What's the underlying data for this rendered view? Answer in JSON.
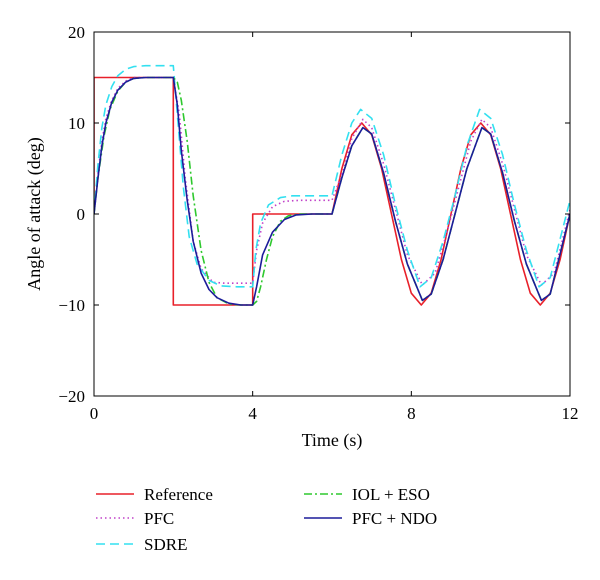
{
  "chart_data": {
    "type": "line",
    "title": "",
    "xlabel": "Time (s)",
    "ylabel": "Angle of attack (deg)",
    "xlim": [
      0,
      12
    ],
    "ylim": [
      -20,
      20
    ],
    "xticks": [
      0,
      4,
      8,
      12
    ],
    "yticks": [
      -20,
      -10,
      0,
      10,
      20
    ],
    "grid": false,
    "legend_position": "bottom",
    "series": [
      {
        "name": "Reference",
        "color": "#e8202a",
        "dash": "solid",
        "x": [
          0,
          0,
          2,
          2,
          4,
          4,
          6,
          6.25,
          6.5,
          6.75,
          7,
          7.25,
          7.5,
          7.75,
          8,
          8.25,
          8.5,
          8.75,
          9,
          9.25,
          9.5,
          9.75,
          10,
          10.25,
          10.5,
          10.75,
          11,
          11.25,
          11.5,
          11.75,
          12
        ],
        "y": [
          0,
          15,
          15,
          -10,
          -10,
          0,
          0,
          5,
          8.7,
          10,
          8.7,
          5,
          0,
          -5,
          -8.7,
          -10,
          -8.7,
          -5,
          0,
          5,
          8.7,
          10,
          8.7,
          5,
          0,
          -5,
          -8.7,
          -10,
          -8.7,
          -5,
          0
        ]
      },
      {
        "name": "PFC",
        "color": "#c040c8",
        "dash": "dotted",
        "x": [
          0,
          0.1,
          0.2,
          0.3,
          0.45,
          0.6,
          0.8,
          1.0,
          1.3,
          1.6,
          2.0,
          2.15,
          2.3,
          2.5,
          2.7,
          3.0,
          3.3,
          3.6,
          4.0,
          4.1,
          4.25,
          4.5,
          4.8,
          5.2,
          6.0,
          6.3,
          6.5,
          6.78,
          7.0,
          7.3,
          7.6,
          7.9,
          8.28,
          8.6,
          8.9,
          9.2,
          9.5,
          9.78,
          10.0,
          10.3,
          10.6,
          10.9,
          11.28,
          11.6,
          12
        ],
        "y": [
          0,
          4.5,
          8,
          10.5,
          12.5,
          13.8,
          14.6,
          15,
          15,
          15,
          15,
          11,
          4,
          -3,
          -6,
          -7.5,
          -7.6,
          -7.6,
          -7.6,
          -4,
          -1,
          0.8,
          1.4,
          1.5,
          1.5,
          5,
          8.3,
          10.4,
          9.5,
          5.5,
          0.5,
          -4.5,
          -7.8,
          -6.5,
          -2,
          3,
          8,
          10.4,
          9.5,
          5.5,
          0.5,
          -4.5,
          -7.8,
          -6.5,
          0.5
        ]
      },
      {
        "name": "SDRE",
        "color": "#33e0f0",
        "dash": "dashed",
        "x": [
          0,
          0.1,
          0.2,
          0.3,
          0.45,
          0.6,
          0.8,
          1.0,
          1.3,
          1.6,
          2.0,
          2.1,
          2.25,
          2.4,
          2.6,
          2.9,
          3.2,
          3.6,
          4.0,
          4.08,
          4.2,
          4.4,
          4.7,
          5.0,
          6.0,
          6.25,
          6.5,
          6.72,
          7.0,
          7.3,
          7.6,
          7.9,
          8.22,
          8.5,
          8.8,
          9.1,
          9.4,
          9.72,
          10.0,
          10.3,
          10.6,
          10.9,
          11.22,
          11.5,
          12
        ],
        "y": [
          0,
          5.5,
          9.5,
          12,
          14,
          15.2,
          15.9,
          16.2,
          16.3,
          16.3,
          16.3,
          11,
          3,
          -2.5,
          -5.5,
          -7.3,
          -7.9,
          -8,
          -8,
          -4,
          -1,
          1,
          1.8,
          2,
          2,
          6.5,
          10,
          11.5,
          10.5,
          6.5,
          1,
          -4,
          -8,
          -7,
          -3,
          2,
          7.5,
          11.5,
          10.5,
          6.5,
          1,
          -4,
          -8,
          -7,
          1.5
        ]
      },
      {
        "name": "IOL + ESO",
        "color": "#2ec82e",
        "dash": "dashdot",
        "x": [
          0,
          0.1,
          0.25,
          0.4,
          0.6,
          0.8,
          1.0,
          1.3,
          1.6,
          2.0,
          2.1,
          2.2,
          2.35,
          2.5,
          2.7,
          2.9,
          3.1,
          3.4,
          3.7,
          4.0,
          4.1,
          4.2,
          4.35,
          4.5,
          4.7,
          4.9,
          5.2,
          6.0,
          6.25,
          6.5,
          6.78,
          7.0,
          7.3,
          7.6,
          7.9,
          8.28,
          8.5,
          8.8,
          9.1,
          9.4,
          9.78,
          10.0,
          10.3,
          10.6,
          10.9,
          11.28,
          11.5,
          12
        ],
        "y": [
          0,
          4,
          8.5,
          11.5,
          13.5,
          14.5,
          14.9,
          15,
          15,
          15,
          14.5,
          12.5,
          8,
          2,
          -4,
          -7.5,
          -9.2,
          -9.9,
          -10,
          -10,
          -9.6,
          -8,
          -5,
          -2.5,
          -0.8,
          -0.2,
          0,
          0,
          4,
          7.5,
          9.5,
          8.8,
          4.5,
          -0.8,
          -5.5,
          -9.5,
          -8.8,
          -5,
          0,
          5,
          9.5,
          8.8,
          4.5,
          -0.8,
          -5.5,
          -9.5,
          -8.8,
          0
        ]
      },
      {
        "name": "PFC + NDO",
        "color": "#1c1c9a",
        "dash": "solid",
        "x": [
          0,
          0.1,
          0.2,
          0.3,
          0.45,
          0.6,
          0.8,
          1.0,
          1.3,
          1.6,
          2.0,
          2.1,
          2.2,
          2.35,
          2.5,
          2.7,
          2.9,
          3.1,
          3.4,
          3.7,
          4.0,
          4.1,
          4.25,
          4.5,
          4.8,
          5.1,
          5.5,
          6.0,
          6.25,
          6.5,
          6.78,
          7.0,
          7.3,
          7.6,
          7.9,
          8.28,
          8.5,
          8.8,
          9.1,
          9.4,
          9.78,
          10.0,
          10.3,
          10.6,
          10.9,
          11.28,
          11.5,
          12
        ],
        "y": [
          0,
          4,
          7.5,
          10,
          12.3,
          13.6,
          14.5,
          14.9,
          15,
          15,
          15,
          12,
          7,
          1.5,
          -3,
          -6.5,
          -8.3,
          -9.2,
          -9.8,
          -10,
          -10,
          -8,
          -4.5,
          -2,
          -0.6,
          -0.1,
          0,
          0,
          4,
          7.5,
          9.5,
          8.8,
          4.5,
          -0.8,
          -5.5,
          -9.5,
          -8.8,
          -5,
          0,
          5,
          9.5,
          8.8,
          4.5,
          -0.8,
          -5.5,
          -9.5,
          -8.8,
          0
        ]
      }
    ]
  }
}
